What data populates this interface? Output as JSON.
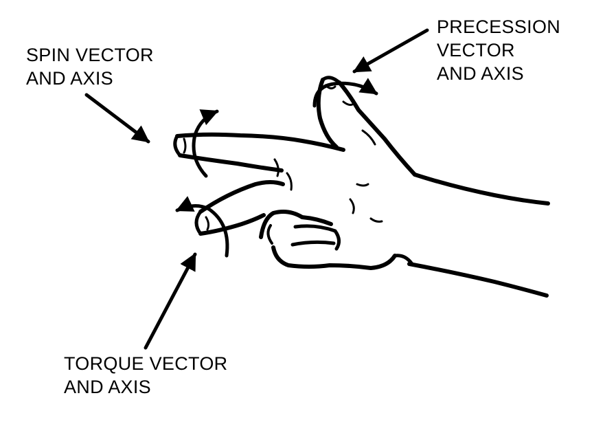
{
  "labels": {
    "spin": {
      "line1": "SPIN VECTOR",
      "line2": "AND AXIS"
    },
    "precession": {
      "line1": "PRECESSION",
      "line2": "VECTOR",
      "line3": "AND AXIS"
    },
    "torque": {
      "line1": "TORQUE VECTOR",
      "line2": "AND AXIS"
    }
  },
  "colors": {
    "ink": "#000000",
    "paper": "#ffffff"
  },
  "icons": {
    "hand": "right-hand-rule-icon",
    "rotation": "curved-rotation-arrow-icon",
    "pointer": "leader-arrow-icon"
  }
}
